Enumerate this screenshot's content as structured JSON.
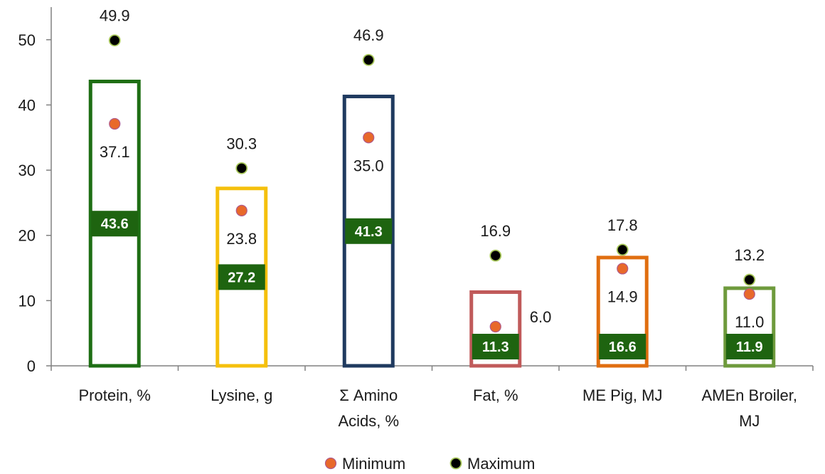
{
  "chart_data": {
    "type": "bar",
    "categories": [
      [
        "Protein, %"
      ],
      [
        "Lysine, g"
      ],
      [
        "Σ Amino",
        "Acids, %"
      ],
      [
        "Fat, %"
      ],
      [
        "ME Pig, MJ"
      ],
      [
        "AMEn Broiler,",
        "MJ"
      ]
    ],
    "series": [
      {
        "name": "",
        "kind": "bar",
        "values": [
          43.6,
          27.2,
          41.3,
          11.3,
          16.6,
          11.9
        ],
        "value_labels": [
          "43.6",
          "27.2",
          "41.3",
          "11.3",
          "16.6",
          "11.9"
        ]
      },
      {
        "name": "Minimum",
        "kind": "point",
        "values": [
          37.1,
          23.8,
          35.0,
          6.0,
          14.9,
          11.0
        ],
        "value_labels": [
          "37.1",
          "23.8",
          "35.0",
          "6.0",
          "14.9",
          "11.0"
        ]
      },
      {
        "name": "Maximum",
        "kind": "point",
        "values": [
          49.9,
          30.3,
          46.9,
          16.9,
          17.8,
          13.2
        ],
        "value_labels": [
          "49.9",
          "30.3",
          "46.9",
          "16.9",
          "17.8",
          "13.2"
        ]
      }
    ],
    "bar_colors": [
      "#1e6e14",
      "#f5c00c",
      "#1f3a5f",
      "#c05a5a",
      "#e06e10",
      "#6e9a3c"
    ],
    "label_box_color": "#1e6410",
    "min_marker_color": "#e8692a",
    "max_marker_color": "#000000",
    "max_marker_edge": "#a8c85a",
    "yticks": [
      0,
      10,
      20,
      30,
      40,
      50
    ],
    "ylim": [
      0,
      55
    ],
    "grid": false,
    "legend_position": "bottom"
  }
}
